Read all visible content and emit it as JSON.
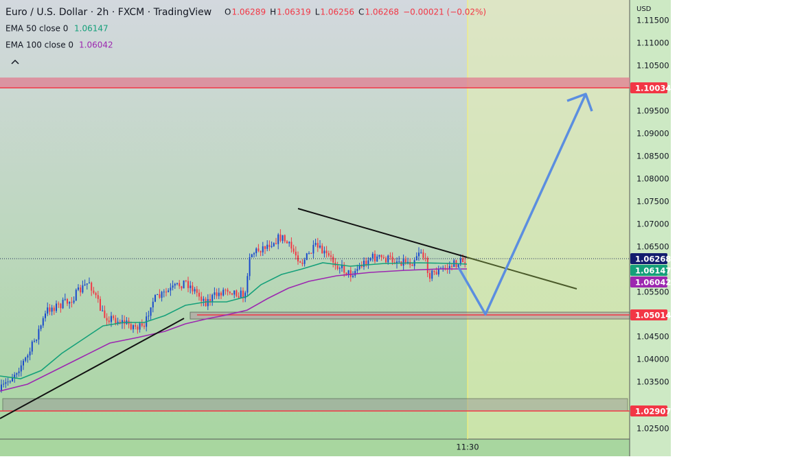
{
  "header": {
    "title": "Euro / U.S. Dollar · 2h · FXCM · TradingView",
    "ohlc": [
      {
        "label": "O",
        "value": "1.06289"
      },
      {
        "label": "H",
        "value": "1.06319"
      },
      {
        "label": "L",
        "value": "1.06256"
      },
      {
        "label": "C",
        "value": "1.06268"
      }
    ],
    "change": "−0.00021 (−0.02%)"
  },
  "indicators": [
    {
      "name": "EMA 50 close 0",
      "value": "1.06147"
    },
    {
      "name": "EMA 100 close 0",
      "value": "1.06042"
    }
  ],
  "price_axis": {
    "currency": "USD",
    "labels": [
      "1.11500",
      "1.11000",
      "1.10500",
      "1.09500",
      "1.09000",
      "1.08500",
      "1.08000",
      "1.07500",
      "1.07000",
      "1.06500",
      "1.05500",
      "1.04500",
      "1.04000",
      "1.03500",
      "1.02500"
    ]
  },
  "price_tags": [
    "1.10034",
    "1.06268",
    "1.06147",
    "1.06042",
    "1.05014",
    "1.02907"
  ],
  "time_axis": {
    "label": "11:30"
  }
}
